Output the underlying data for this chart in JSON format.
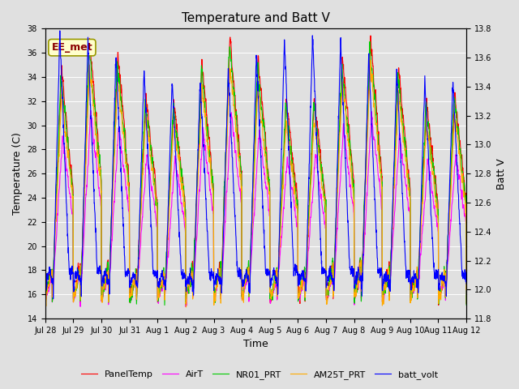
{
  "title": "Temperature and Batt V",
  "xlabel": "Time",
  "ylabel_left": "Temperature (C)",
  "ylabel_right": "Batt V",
  "ylim_left": [
    14,
    38
  ],
  "ylim_right": [
    11.8,
    13.8
  ],
  "annotation": "EE_met",
  "fig_bg_color": "#e0e0e0",
  "plot_bg_color": "#e0e0e0",
  "legend_entries": [
    "PanelTemp",
    "AirT",
    "NR01_PRT",
    "AM25T_PRT",
    "batt_volt"
  ],
  "line_colors": [
    "#ff0000",
    "#ff00ff",
    "#00cc00",
    "#ffaa00",
    "#0000ff"
  ],
  "xtick_labels": [
    "Jul 28",
    "Jul 29",
    "Jul 30",
    "Jul 31",
    "Aug 1",
    "Aug 2",
    "Aug 3",
    "Aug 4",
    "Aug 5",
    "Aug 6",
    "Aug 7",
    "Aug 8",
    "Aug 9",
    "Aug 10",
    "Aug 11",
    "Aug 12"
  ],
  "num_days": 15,
  "fontsize_title": 11,
  "fontsize_labels": 9,
  "fontsize_ticks": 7,
  "fontsize_legend": 8,
  "linewidth": 0.8
}
